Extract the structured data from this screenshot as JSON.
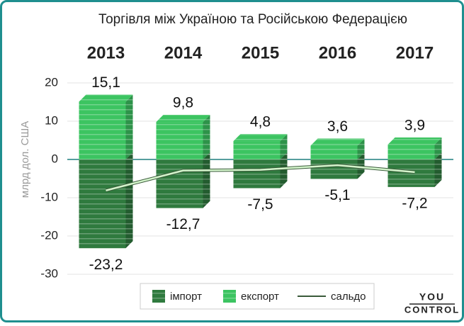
{
  "chart_data": {
    "type": "bar",
    "title": "Торгівля між Україною та Російською Федерацією",
    "categories": [
      "2013",
      "2014",
      "2015",
      "2016",
      "2017"
    ],
    "y_label": "млрд дол. США",
    "series": [
      {
        "name": "імпорт",
        "color": "#2f7a3e",
        "values": [
          -23.2,
          -12.7,
          -7.5,
          -5.1,
          -7.2
        ],
        "value_labels": [
          "-23,2",
          "-12,7",
          "-7,5",
          "-5,1",
          "-7,2"
        ]
      },
      {
        "name": "експорт",
        "color": "#3cc461",
        "values": [
          15.1,
          9.8,
          4.8,
          3.6,
          3.9
        ],
        "value_labels": [
          "15,1",
          "9,8",
          "4,8",
          "3,6",
          "3,9"
        ]
      },
      {
        "name": "сальдо",
        "type": "line",
        "color": "#d4f5cc",
        "values": [
          -8.1,
          -2.9,
          -2.7,
          -1.5,
          -3.3
        ]
      }
    ],
    "ylim": [
      -30,
      20
    ],
    "yticks": [
      -30,
      -20,
      -10,
      0,
      10,
      20
    ],
    "grid": true,
    "logo": [
      "YOU",
      "CONTROL"
    ]
  }
}
